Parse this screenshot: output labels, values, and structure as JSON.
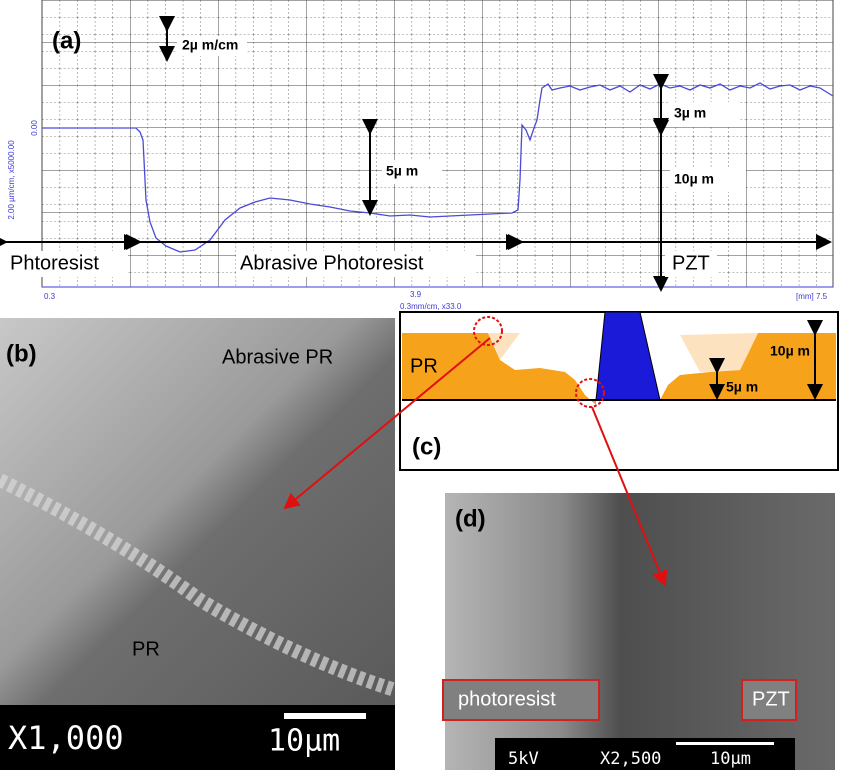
{
  "panel_a": {
    "label": "(a)",
    "scale_note": "2µ m/cm",
    "step_5": "5µ m",
    "step_3": "3µ m",
    "step_10": "10µ m",
    "regions": [
      "Phtoresist",
      "Abrasive Photoresist",
      "PZT"
    ],
    "x_labels": [
      "0.3",
      "3.9",
      "[mm] 7.5"
    ],
    "x_scale": "0.3mm/cm, x33.0",
    "y_zero": "0.00",
    "y_scale": "2.00 µm/cm, x5000.00"
  },
  "panel_b": {
    "label": "(b)",
    "top_text": "Abrasive PR",
    "bottom_text": "PR",
    "magnification": "X1,000",
    "scale_bar": "10µm"
  },
  "panel_c": {
    "label": "(c)",
    "layer": "PR",
    "height_10": "10µ m",
    "height_5": "5µ m"
  },
  "panel_d": {
    "label": "(d)",
    "left_tag": "photoresist",
    "right_tag": "PZT",
    "voltage": "5kV",
    "magnification": "X2,500",
    "scale_bar": "10µm"
  }
}
